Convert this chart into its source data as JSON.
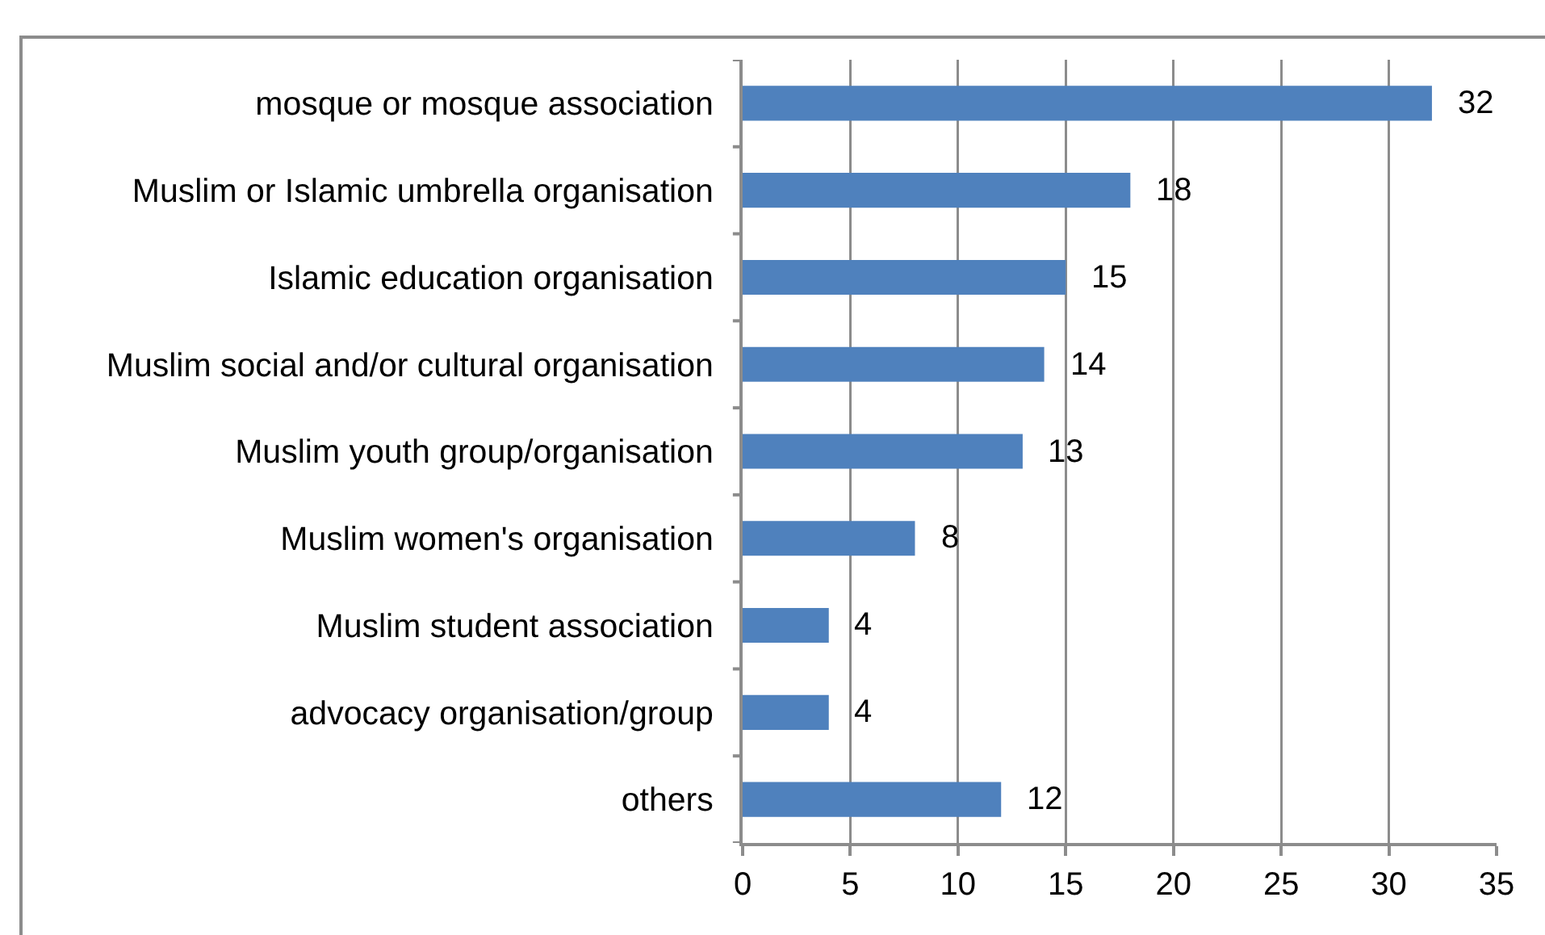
{
  "chart_data": {
    "type": "bar",
    "orientation": "horizontal",
    "categories": [
      "mosque or mosque association",
      "Muslim or Islamic umbrella organisation",
      "Islamic education organisation",
      "Muslim social and/or cultural organisation",
      "Muslim youth group/organisation",
      "Muslim women's organisation",
      "Muslim student association",
      "advocacy organisation/group",
      "others"
    ],
    "values": [
      32,
      18,
      15,
      14,
      13,
      8,
      4,
      4,
      12
    ],
    "color": "#4f81bd",
    "xlim": [
      0,
      35
    ],
    "xticks": [
      0,
      5,
      10,
      15,
      20,
      25,
      30,
      35
    ],
    "grid": "x",
    "data_labels": true
  }
}
